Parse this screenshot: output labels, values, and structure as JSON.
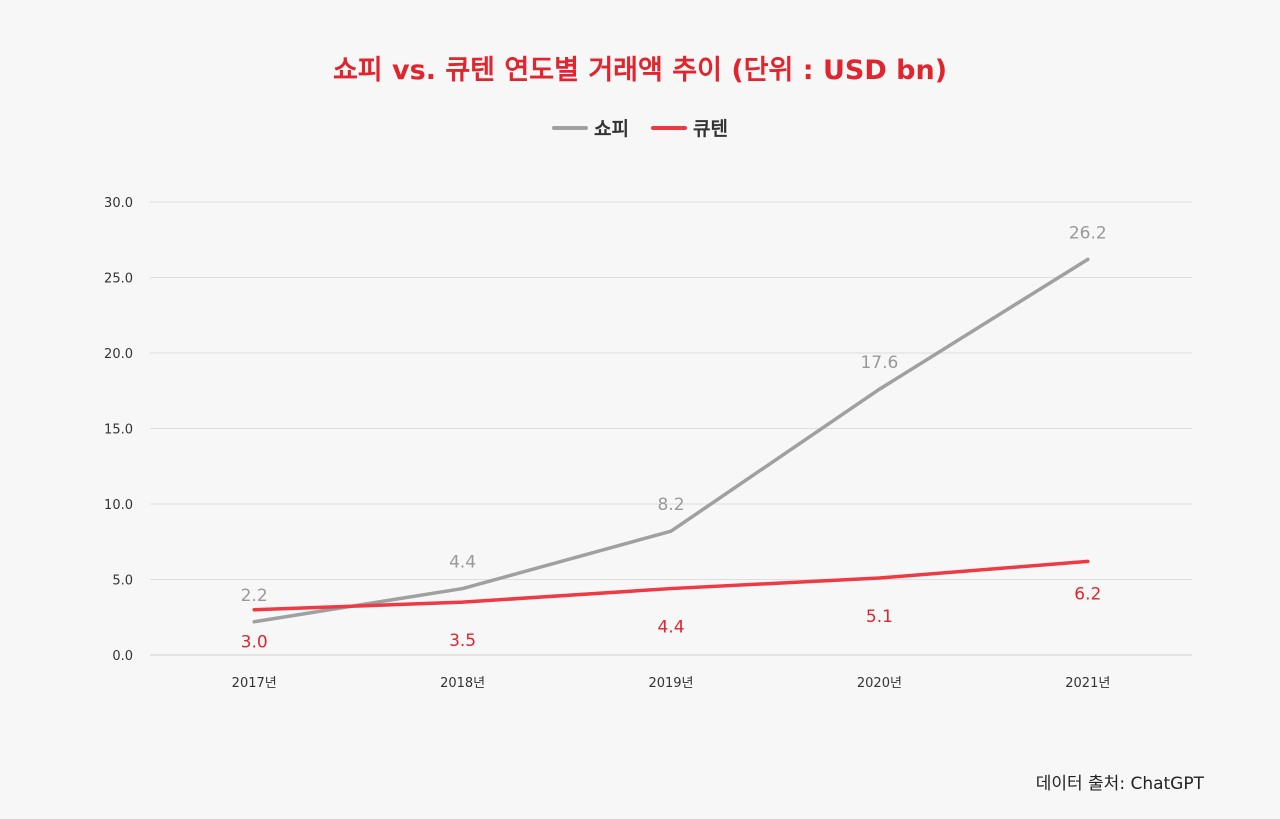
{
  "chart_data": {
    "type": "line",
    "title": "쇼피 vs. 큐텐 연도별 거래액 추이 (단위 : USD bn)",
    "categories": [
      "2017년",
      "2018년",
      "2019년",
      "2020년",
      "2021년"
    ],
    "series": [
      {
        "name": "쇼피",
        "color": "#a0a0a0",
        "values": [
          2.2,
          4.4,
          8.2,
          17.6,
          26.2
        ],
        "labels": [
          "2.2",
          "4.4",
          "8.2",
          "17.6",
          "26.2"
        ]
      },
      {
        "name": "큐텐",
        "color": "#ee3a45",
        "values": [
          3.0,
          3.5,
          4.4,
          5.1,
          6.2
        ],
        "labels": [
          "3.0",
          "3.5",
          "4.4",
          "5.1",
          "6.2"
        ]
      }
    ],
    "ylim": [
      0,
      30
    ],
    "yticks": [
      "0.0",
      "5.0",
      "10.0",
      "15.0",
      "20.0",
      "25.0",
      "30.0"
    ],
    "grid": true,
    "legend_position": "top-center",
    "xlabel": "",
    "ylabel": ""
  },
  "footer": {
    "source": "데이터 출처: ChatGPT"
  }
}
